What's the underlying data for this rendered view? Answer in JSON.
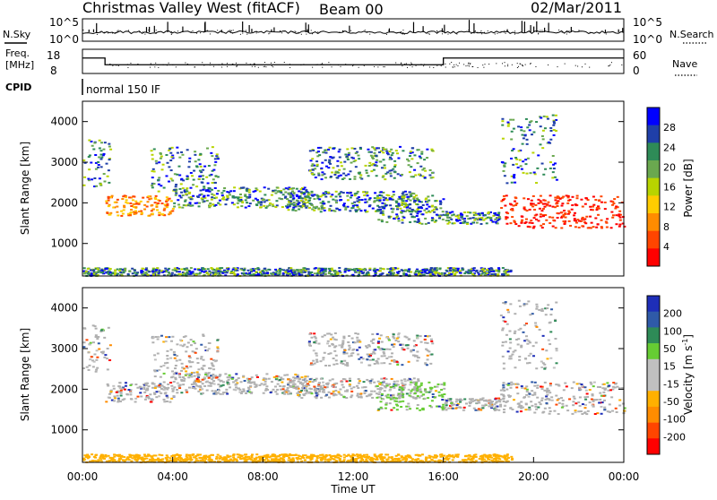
{
  "header": {
    "station": "Christmas Valley West (fitACF)",
    "beam": "Beam 00",
    "date": "02/Mar/2011"
  },
  "panel_labels": {
    "nsky": "N.Sky",
    "nsearch": "N.Search",
    "freq_line1": "Freq.",
    "freq_line2": "[MHz]",
    "nave": "Nave",
    "cpid": "CPID",
    "cpid_value": "normal 150 IF"
  },
  "colors": {
    "power_scale": [
      "#0000ff",
      "#1f3fa8",
      "#2e8b57",
      "#6aa84f",
      "#b8d400",
      "#ffcc00",
      "#ff8c00",
      "#ff4500",
      "#ff0000"
    ],
    "velocity_scale": [
      "#1e2eb8",
      "#2f5aa8",
      "#2e8b57",
      "#66cc33",
      "#c0c0c0",
      "#c0c0c0",
      "#ffb000",
      "#ff8c00",
      "#ff4500",
      "#ff0000"
    ],
    "ground_scatter": "#b0b0b0"
  },
  "chart_data": [
    {
      "type": "line",
      "name": "noise-panel",
      "series": [
        {
          "name": "N.Sky"
        },
        {
          "name": "N.Search"
        }
      ],
      "ytick_labels_left": [
        "10^5",
        "10^0"
      ],
      "ytick_labels_right": [
        "10^5",
        "10^0"
      ],
      "scale": "log"
    },
    {
      "type": "line",
      "name": "frequency-panel",
      "series": [
        {
          "name": "Freq.",
          "x": [
            "00:00",
            "01:00",
            "01:00",
            "16:00",
            "16:00",
            "24:00"
          ],
          "values": [
            14.5,
            14.5,
            11.5,
            11.5,
            14.5,
            14.5
          ]
        },
        {
          "name": "Nave"
        }
      ],
      "ytick_labels_left": [
        "18",
        "8"
      ],
      "ytick_labels_right": [
        "60",
        "0"
      ],
      "ylim_left": [
        8,
        18
      ],
      "ylim_right": [
        0,
        60
      ]
    },
    {
      "type": "heatmap",
      "name": "power-panel",
      "xlabel": "",
      "ylabel": "Slant Range [km]",
      "yticks": [
        1000,
        2000,
        3000,
        4000
      ],
      "ylim": [
        200,
        4500
      ],
      "xlim": [
        "00:00",
        "24:00"
      ],
      "colorbar": {
        "label": "Power [dB]",
        "ticks": [
          "28",
          "24",
          "20",
          "16",
          "12",
          "8",
          "4"
        ]
      }
    },
    {
      "type": "heatmap",
      "name": "velocity-panel",
      "xlabel": "Time UT",
      "ylabel": "Slant Range [km]",
      "yticks": [
        1000,
        2000,
        3000,
        4000
      ],
      "ylim": [
        200,
        4500
      ],
      "xlim": [
        "00:00",
        "24:00"
      ],
      "xtick_labels": [
        "00:00",
        "04:00",
        "08:00",
        "12:00",
        "16:00",
        "20:00",
        "00:00"
      ],
      "colorbar": {
        "label": "Velocity [m s-1]",
        "ticks": [
          "200",
          "100",
          "50",
          "15",
          "-15",
          "-50",
          "-100",
          "-200"
        ]
      }
    }
  ]
}
